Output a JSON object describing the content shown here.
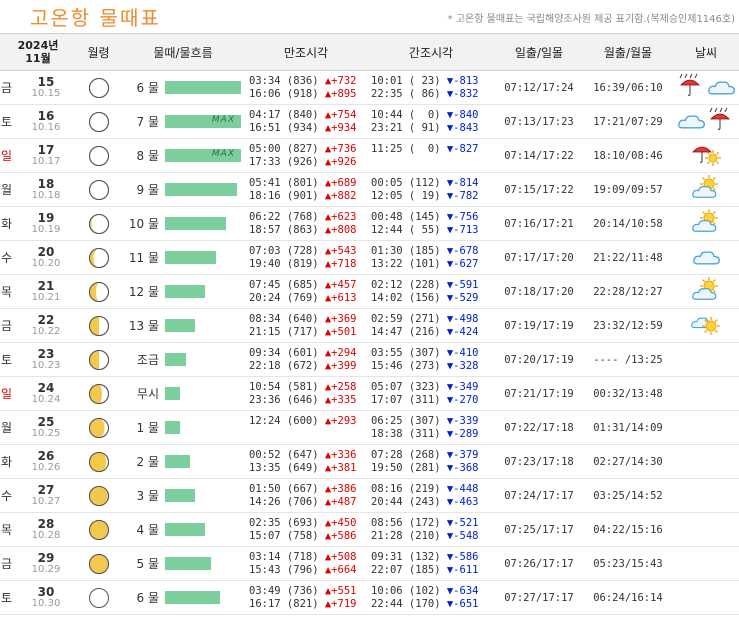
{
  "header": {
    "title": "고온항  물때표",
    "note": "* 고온항 물때표는 국립해양조사원 제공 표기함.(복제승인제1146호)"
  },
  "columns": {
    "date": "2024년\n11월",
    "moon": "월령",
    "mul": "물때/물흐름",
    "high": "만조시각",
    "low": "간조시각",
    "sun": "일출/일몰",
    "moonrise": "월출/월몰",
    "weather": "날씨"
  },
  "bar_max_label": "MAX",
  "rows": [
    {
      "dow": "금",
      "sun": false,
      "day": "15",
      "lunar": "10.15",
      "phase": 1.0,
      "mul": "6 물",
      "flow": 1.0,
      "max": false,
      "high": [
        "03:34 (836) ▲+732",
        "16:06 (918) ▲+895"
      ],
      "low": [
        "10:01 ( 23) ▼-813",
        "22:35 ( 86) ▼-832"
      ],
      "sunrs": "07:12/17:24",
      "moonrs": "16:39/06:10",
      "weather": [
        "umbrella-rain",
        "cloud"
      ]
    },
    {
      "dow": "토",
      "sun": false,
      "day": "16",
      "lunar": "10.16",
      "phase": 1.0,
      "mul": "7 물",
      "flow": 1.0,
      "max": true,
      "high": [
        "04:17 (840) ▲+754",
        "16:51 (934) ▲+934"
      ],
      "low": [
        "10:44 (  0) ▼-840",
        "23:21 ( 91) ▼-843"
      ],
      "sunrs": "07:13/17:23",
      "moonrs": "17:21/07:29",
      "weather": [
        "cloud",
        "umbrella-rain"
      ]
    },
    {
      "dow": "일",
      "sun": true,
      "day": "17",
      "lunar": "10.17",
      "phase": 0.97,
      "mul": "8 물",
      "flow": 1.0,
      "max": true,
      "high": [
        "05:00 (827) ▲+736",
        "17:33 (926) ▲+926"
      ],
      "low": [
        "11:25 (  0) ▼-827",
        ""
      ],
      "sunrs": "07:14/17:22",
      "moonrs": "18:10/08:46",
      "weather": [
        "umbrella-sun"
      ]
    },
    {
      "dow": "월",
      "sun": false,
      "day": "18",
      "lunar": "10.18",
      "phase": 0.9,
      "mul": "9 물",
      "flow": 0.95,
      "max": false,
      "high": [
        "05:41 (801) ▲+689",
        "18:16 (901) ▲+882"
      ],
      "low": [
        "00:05 (112) ▼-814",
        "12:05 ( 19) ▼-782"
      ],
      "sunrs": "07:15/17:22",
      "moonrs": "19:09/09:57",
      "weather": [
        "sun-cloud"
      ]
    },
    {
      "dow": "화",
      "sun": false,
      "day": "19",
      "lunar": "10.19",
      "phase": 0.8,
      "mul": "10 물",
      "flow": 0.8,
      "max": false,
      "high": [
        "06:22 (768) ▲+623",
        "18:57 (863) ▲+808"
      ],
      "low": [
        "00:48 (145) ▼-756",
        "12:44 ( 55) ▼-713"
      ],
      "sunrs": "07:16/17:21",
      "moonrs": "20:14/10:58",
      "weather": [
        "sun-cloud"
      ]
    },
    {
      "dow": "수",
      "sun": false,
      "day": "20",
      "lunar": "10.20",
      "phase": 0.7,
      "mul": "11 물",
      "flow": 0.67,
      "max": false,
      "high": [
        "07:03 (728) ▲+543",
        "19:40 (819) ▲+718"
      ],
      "low": [
        "01:30 (185) ▼-678",
        "13:22 (101) ▼-627"
      ],
      "sunrs": "07:17/17:20",
      "moonrs": "21:22/11:48",
      "weather": [
        "cloud"
      ]
    },
    {
      "dow": "목",
      "sun": false,
      "day": "21",
      "lunar": "10.21",
      "phase": 0.6,
      "mul": "12 물",
      "flow": 0.53,
      "max": false,
      "high": [
        "07:45 (685) ▲+457",
        "20:24 (769) ▲+613"
      ],
      "low": [
        "02:12 (228) ▼-591",
        "14:02 (156) ▼-529"
      ],
      "sunrs": "07:18/17:20",
      "moonrs": "22:28/12:27",
      "weather": [
        "sun-cloud"
      ]
    },
    {
      "dow": "금",
      "sun": false,
      "day": "22",
      "lunar": "10.22",
      "phase": 0.5,
      "mul": "13 물",
      "flow": 0.4,
      "max": false,
      "high": [
        "08:34 (640) ▲+369",
        "21:15 (717) ▲+501"
      ],
      "low": [
        "02:59 (271) ▼-498",
        "14:47 (216) ▼-424"
      ],
      "sunrs": "07:19/17:19",
      "moonrs": "23:32/12:59",
      "weather": [
        "cloud-sun"
      ]
    },
    {
      "dow": "토",
      "sun": false,
      "day": "23",
      "lunar": "10.23",
      "phase": 0.5,
      "mul": "조금",
      "flow": 0.27,
      "max": false,
      "high": [
        "09:34 (601) ▲+294",
        "22:18 (672) ▲+399"
      ],
      "low": [
        "03:55 (307) ▼-410",
        "15:46 (273) ▼-328"
      ],
      "sunrs": "07:20/17:19",
      "moonrs": "---- /13:25",
      "weather": []
    },
    {
      "dow": "일",
      "sun": true,
      "day": "24",
      "lunar": "10.24",
      "phase": 0.4,
      "mul": "무시",
      "flow": 0.2,
      "max": false,
      "high": [
        "10:54 (581) ▲+258",
        "23:36 (646) ▲+335"
      ],
      "low": [
        "05:07 (323) ▼-349",
        "17:07 (311) ▼-270"
      ],
      "sunrs": "07:21/17:19",
      "moonrs": "00:32/13:48",
      "weather": []
    },
    {
      "dow": "월",
      "sun": false,
      "day": "25",
      "lunar": "10.25",
      "phase": 0.3,
      "mul": "1 물",
      "flow": 0.2,
      "max": false,
      "high": [
        "12:24 (600) ▲+293",
        ""
      ],
      "low": [
        "06:25 (307) ▼-339",
        "18:38 (311) ▼-289"
      ],
      "sunrs": "07:22/17:18",
      "moonrs": "01:31/14:09",
      "weather": []
    },
    {
      "dow": "화",
      "sun": false,
      "day": "26",
      "lunar": "10.26",
      "phase": 0.22,
      "mul": "2 물",
      "flow": 0.33,
      "max": false,
      "high": [
        "00:52 (647) ▲+336",
        "13:35 (649) ▲+381"
      ],
      "low": [
        "07:28 (268) ▼-379",
        "19:50 (281) ▼-368"
      ],
      "sunrs": "07:23/17:18",
      "moonrs": "02:27/14:30",
      "weather": []
    },
    {
      "dow": "수",
      "sun": false,
      "day": "27",
      "lunar": "10.27",
      "phase": 0.15,
      "mul": "3 물",
      "flow": 0.4,
      "max": false,
      "high": [
        "01:50 (667) ▲+386",
        "14:26 (706) ▲+487"
      ],
      "low": [
        "08:16 (219) ▼-448",
        "20:44 (243) ▼-463"
      ],
      "sunrs": "07:24/17:17",
      "moonrs": "03:25/14:52",
      "weather": []
    },
    {
      "dow": "목",
      "sun": false,
      "day": "28",
      "lunar": "10.28",
      "phase": 0.1,
      "mul": "4 물",
      "flow": 0.53,
      "max": false,
      "high": [
        "02:35 (693) ▲+450",
        "15:07 (758) ▲+586"
      ],
      "low": [
        "08:56 (172) ▼-521",
        "21:28 (210) ▼-548"
      ],
      "sunrs": "07:25/17:17",
      "moonrs": "04:22/15:16",
      "weather": []
    },
    {
      "dow": "금",
      "sun": false,
      "day": "29",
      "lunar": "10.29",
      "phase": 0.05,
      "mul": "5 물",
      "flow": 0.6,
      "max": false,
      "high": [
        "03:14 (718) ▲+508",
        "15:43 (796) ▲+664"
      ],
      "low": [
        "09:31 (132) ▼-586",
        "22:07 (185) ▼-611"
      ],
      "sunrs": "07:26/17:17",
      "moonrs": "05:23/15:43",
      "weather": []
    },
    {
      "dow": "토",
      "sun": false,
      "day": "30",
      "lunar": "10.30",
      "phase": 0.0,
      "mul": "6 물",
      "flow": 0.73,
      "max": false,
      "high": [
        "03:49 (736) ▲+551",
        "16:17 (821) ▲+719"
      ],
      "low": [
        "10:06 (102) ▼-634",
        "22:44 (170) ▼-651"
      ],
      "sunrs": "07:27/17:17",
      "moonrs": "06:24/16:14",
      "weather": []
    }
  ]
}
